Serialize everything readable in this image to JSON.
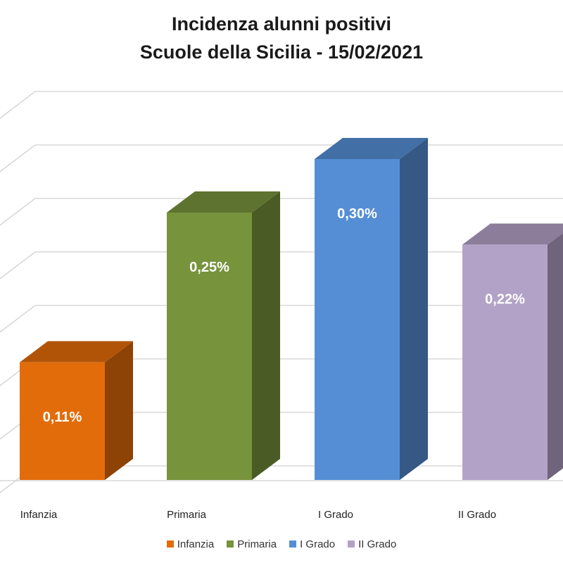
{
  "chart_data": {
    "type": "bar",
    "title_line1": "Incidenza alunni positivi",
    "title_line2": "Scuole della Sicilia - 15/02/2021",
    "categories": [
      "Infanzia",
      "Primaria",
      "I Grado",
      "II Grado"
    ],
    "values": [
      0.11,
      0.25,
      0.3,
      0.22
    ],
    "value_labels": [
      "0,11%",
      "0,25%",
      "0,30%",
      "0,22%"
    ],
    "colors": [
      "#E36C0A",
      "#77933C",
      "#558ED5",
      "#B3A2C7"
    ],
    "ylim": [
      0,
      0.35
    ],
    "grid": true,
    "legend_position": "bottom",
    "legend": [
      "Infanzia",
      "Primaria",
      "I Grado",
      "II Grado"
    ]
  }
}
